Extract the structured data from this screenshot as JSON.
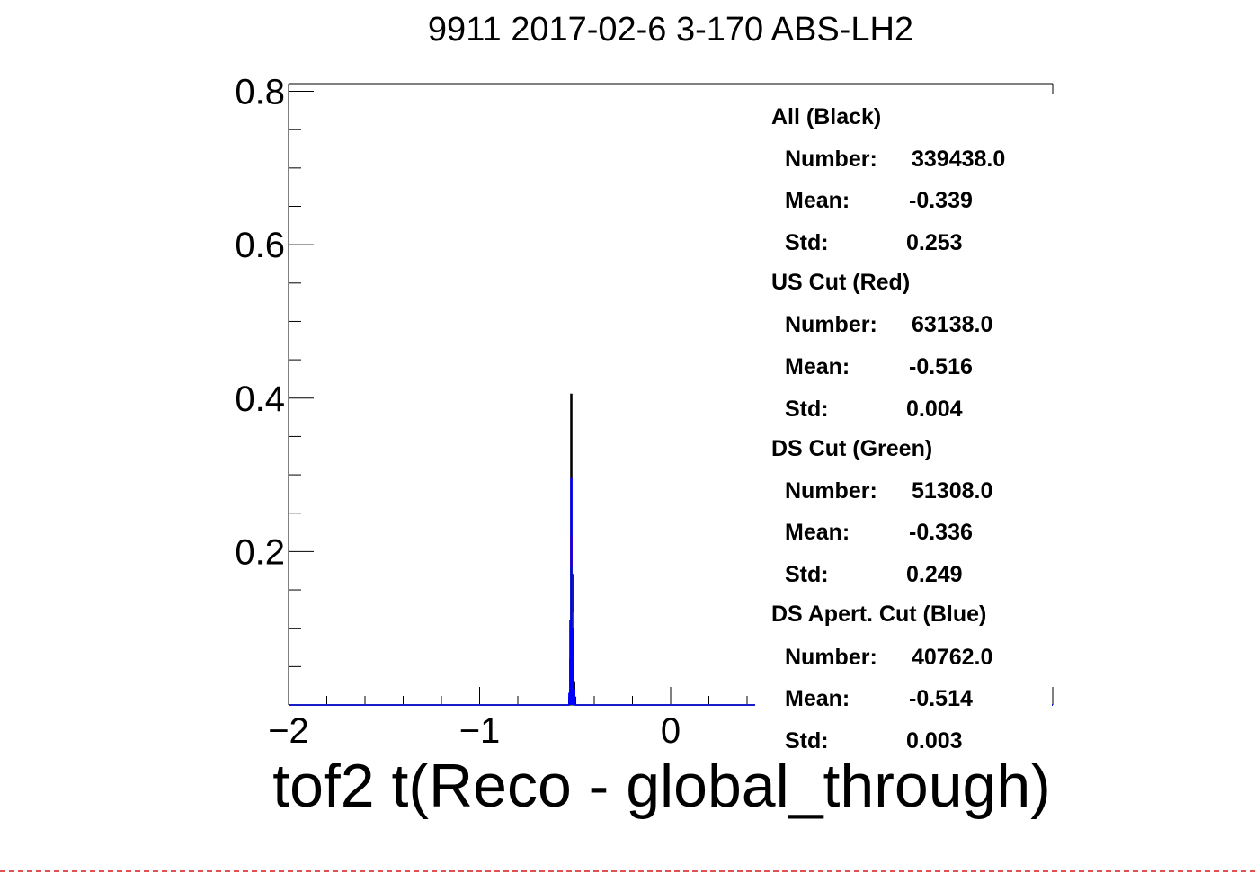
{
  "chart_data": {
    "type": "histogram",
    "title": "9911 2017-02-6 3-170 ABS-LH2",
    "xlabel": "tof2 t(Reco - global_through)",
    "ylabel": "",
    "xlim": [
      -2,
      2
    ],
    "ylim": [
      0,
      0.81
    ],
    "xticks": [
      "−2",
      "−1",
      "0"
    ],
    "yticks": [
      "0.2",
      "0.4",
      "0.6",
      "0.8"
    ],
    "grid": false,
    "series": [
      {
        "name": "All (Black)",
        "color": "#000000",
        "x": [
          -0.53,
          -0.525,
          -0.52,
          -0.515,
          -0.51,
          -0.505,
          -0.5
        ],
        "values": [
          0.01,
          0.06,
          0.405,
          0.17,
          0.05,
          0.03,
          0.01
        ]
      },
      {
        "name": "US Cut (Red)",
        "color": "#ff0000",
        "x": [
          -0.525,
          -0.52,
          -0.515,
          -0.51
        ],
        "values": [
          0.03,
          0.22,
          0.12,
          0.02
        ]
      },
      {
        "name": "DS Cut (Green)",
        "color": "#00aa00",
        "x": [
          -0.525,
          -0.52,
          -0.515,
          -0.51
        ],
        "values": [
          0.02,
          0.18,
          0.09,
          0.01
        ]
      },
      {
        "name": "DS Apert. Cut (Blue)",
        "color": "#0000ff",
        "x": [
          -0.53,
          -0.525,
          -0.52,
          -0.515,
          -0.51,
          -0.505
        ],
        "values": [
          0.015,
          0.11,
          0.295,
          0.08,
          0.1,
          0.02
        ]
      }
    ]
  },
  "stats": [
    {
      "header": "All (Black)",
      "number_label": "Number:",
      "number": "339438.0",
      "mean_label": "Mean:",
      "mean": "-0.339",
      "std_label": "Std:",
      "std": "0.253"
    },
    {
      "header": "US Cut (Red)",
      "number_label": "Number:",
      "number": "63138.0",
      "mean_label": "Mean:",
      "mean": "-0.516",
      "std_label": "Std:",
      "std": "0.004"
    },
    {
      "header": "DS Cut (Green)",
      "number_label": "Number:",
      "number": "51308.0",
      "mean_label": "Mean:",
      "mean": "-0.336",
      "std_label": "Std:",
      "std": "0.249"
    },
    {
      "header": "DS Apert. Cut (Blue)",
      "number_label": "Number:",
      "number": "40762.0",
      "mean_label": "Mean:",
      "mean": "-0.514",
      "std_label": "Std:",
      "std": "0.003"
    }
  ]
}
